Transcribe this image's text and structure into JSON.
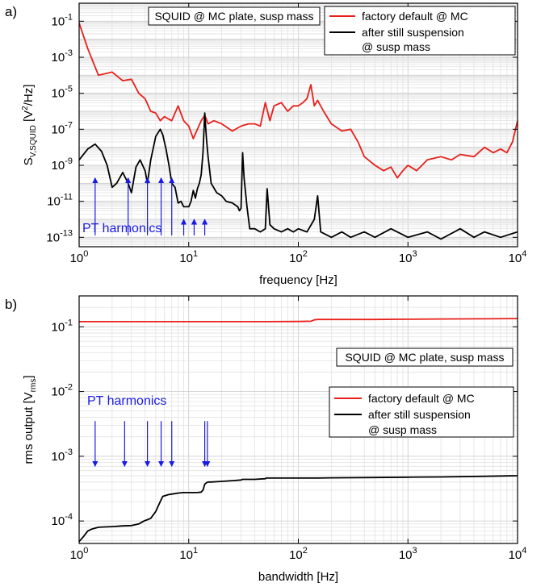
{
  "chart_data": [
    {
      "panel_label": "a)",
      "type": "line",
      "xscale": "log",
      "yscale": "log",
      "xlim": [
        1,
        10000
      ],
      "ylim": [
        3e-14,
        1
      ],
      "grid": true,
      "xlabel": "frequency [Hz]",
      "ylabel": "S",
      "ylabel_sub": "V,SQUID",
      "ylabel_unit_pre": " [V",
      "ylabel_unit_sup": "2",
      "ylabel_unit_post": "/Hz]",
      "x_ticks": [
        1,
        10,
        100,
        1000,
        10000
      ],
      "x_tick_labels": [
        {
          "base": "10",
          "exp": "0"
        },
        {
          "base": "10",
          "exp": "1"
        },
        {
          "base": "10",
          "exp": "2"
        },
        {
          "base": "10",
          "exp": "3"
        },
        {
          "base": "10",
          "exp": "4"
        }
      ],
      "y_ticks": [
        0.1,
        0.001,
        1e-05,
        1e-07,
        1e-09,
        1e-11,
        1e-13
      ],
      "y_tick_labels": [
        {
          "base": "10",
          "exp": "-1"
        },
        {
          "base": "10",
          "exp": "-3"
        },
        {
          "base": "10",
          "exp": "-5"
        },
        {
          "base": "10",
          "exp": "-7"
        },
        {
          "base": "10",
          "exp": "-9"
        },
        {
          "base": "10",
          "exp": "-11"
        },
        {
          "base": "10",
          "exp": "-13"
        }
      ],
      "annotation_box": "SQUID @ MC plate, susp mass",
      "annotation_harmonics": "PT harmonics",
      "harmonic_arrows_x": [
        1.4,
        2.8,
        4.2,
        5.6,
        7.0,
        9.0,
        11.2,
        14.0
      ],
      "harmonic_arrow_tops": [
        2e-10,
        2e-10,
        2e-10,
        2e-10,
        2e-10,
        1e-12,
        1e-12,
        1e-12
      ],
      "legend": {
        "position": "top-right",
        "lines": [
          {
            "series": 0,
            "text": "factory default @ MC"
          },
          {
            "series": 1,
            "text": "after still suspension"
          },
          {
            "series": null,
            "text": "@ susp mass"
          }
        ]
      },
      "series": [
        {
          "name": "factory default @ MC",
          "color": "#e8201a",
          "x": [
            1,
            1.2,
            1.5,
            2,
            2.5,
            3,
            3.5,
            4,
            4.5,
            5,
            5.5,
            6,
            7,
            8,
            9,
            10,
            11,
            12,
            13,
            14,
            15,
            17,
            20,
            25,
            30,
            35,
            40,
            45,
            50,
            55,
            60,
            70,
            80,
            90,
            100,
            110,
            120,
            130,
            140,
            150,
            170,
            200,
            250,
            300,
            350,
            400,
            500,
            600,
            700,
            800,
            900,
            1000,
            1200,
            1500,
            2000,
            2500,
            3000,
            4000,
            5000,
            6000,
            7000,
            8000,
            9000,
            10000
          ],
          "y": [
            0.08,
            0.003,
            0.0001,
            0.00015,
            5e-05,
            6e-05,
            1e-05,
            5e-06,
            1e-06,
            8e-07,
            3e-07,
            5e-07,
            3e-07,
            2e-06,
            3e-07,
            1.5e-07,
            3e-08,
            1e-07,
            3e-07,
            6e-07,
            2e-07,
            3e-07,
            2e-07,
            8e-08,
            1.5e-07,
            2e-07,
            2e-07,
            1.5e-07,
            3e-06,
            3e-07,
            2e-06,
            3e-06,
            1e-06,
            2e-06,
            2e-06,
            3e-06,
            5e-06,
            3e-05,
            2e-06,
            4e-06,
            1e-06,
            2e-07,
            8e-08,
            1e-07,
            2e-08,
            3e-09,
            1e-09,
            5e-10,
            8e-10,
            2e-10,
            5e-10,
            1e-09,
            5e-10,
            2e-09,
            3e-09,
            2e-09,
            4e-09,
            3e-09,
            1e-08,
            5e-09,
            8e-09,
            5e-09,
            2e-08,
            3e-07
          ]
        },
        {
          "name": "after still suspension",
          "color": "#000000",
          "x": [
            1,
            1.2,
            1.4,
            1.6,
            1.8,
            2,
            2.2,
            2.5,
            2.8,
            3,
            3.3,
            3.6,
            4,
            4.2,
            4.5,
            5,
            5.5,
            5.8,
            6.2,
            6.6,
            7,
            7.5,
            8,
            8.5,
            9,
            10,
            10.5,
            11,
            11.5,
            12,
            12.5,
            13,
            13.5,
            14,
            14.5,
            15,
            16,
            18,
            20,
            22,
            25,
            28,
            29,
            30,
            31,
            32,
            34,
            36,
            40,
            45,
            50,
            52,
            55,
            60,
            70,
            80,
            90,
            100,
            120,
            140,
            150,
            160,
            200,
            250,
            300,
            400,
            500,
            700,
            1000,
            1500,
            2000,
            3000,
            4000,
            5000,
            7000,
            10000
          ],
          "y": [
            2e-09,
            8e-09,
            1.5e-08,
            6e-09,
            1e-09,
            6e-11,
            1e-10,
            4e-10,
            1e-10,
            3e-11,
            8e-10,
            2e-09,
            5e-10,
            1e-10,
            2e-09,
            4e-08,
            1e-07,
            5e-08,
            8e-09,
            1e-09,
            1e-10,
            6e-11,
            8e-12,
            1e-11,
            5e-12,
            5e-12,
            1e-11,
            4e-11,
            1.5e-11,
            5e-11,
            1e-10,
            3e-10,
            5e-09,
            8e-07,
            3e-08,
            3e-09,
            1e-10,
            3e-11,
            2e-11,
            1e-11,
            8e-12,
            5e-12,
            3e-12,
            4e-12,
            5e-09,
            2e-10,
            5e-12,
            3e-13,
            3e-13,
            2e-13,
            3e-13,
            5e-11,
            5e-13,
            3e-13,
            2e-13,
            3e-13,
            2e-13,
            3e-13,
            2e-13,
            1e-12,
            2e-11,
            2e-13,
            1e-13,
            2e-13,
            1e-13,
            2e-13,
            1e-13,
            3e-13,
            1e-13,
            2e-13,
            8e-14,
            3e-13,
            1e-13,
            2e-13,
            1e-13,
            2e-13
          ]
        }
      ]
    },
    {
      "panel_label": "b)",
      "type": "line",
      "xscale": "log",
      "yscale": "log",
      "xlim": [
        1,
        10000
      ],
      "ylim": [
        4.5e-05,
        0.3
      ],
      "grid": true,
      "xlabel": "bandwidth [Hz]",
      "ylabel": "rms output [V",
      "ylabel_sub": "rms",
      "ylabel_post": "]",
      "x_ticks": [
        1,
        10,
        100,
        1000,
        10000
      ],
      "x_tick_labels": [
        {
          "base": "10",
          "exp": "0"
        },
        {
          "base": "10",
          "exp": "1"
        },
        {
          "base": "10",
          "exp": "2"
        },
        {
          "base": "10",
          "exp": "3"
        },
        {
          "base": "10",
          "exp": "4"
        }
      ],
      "y_ticks": [
        0.1,
        0.01,
        0.001,
        0.0001
      ],
      "y_tick_labels": [
        {
          "base": "10",
          "exp": "-1"
        },
        {
          "base": "10",
          "exp": "-2"
        },
        {
          "base": "10",
          "exp": "-3"
        },
        {
          "base": "10",
          "exp": "-4"
        }
      ],
      "annotation_box": "SQUID @ MC plate, susp mass",
      "annotation_harmonics": "PT harmonics",
      "harmonic_arrows_x": [
        1.4,
        2.6,
        4.2,
        5.6,
        7.0,
        14.0,
        14.8
      ],
      "harmonic_arrow_top": 0.0035,
      "harmonic_arrow_bottom": 0.0007,
      "legend": {
        "position": "center-right",
        "lines": [
          {
            "series": 0,
            "text": "factory default @ MC"
          },
          {
            "series": 1,
            "text": "after still suspension"
          },
          {
            "series": null,
            "text": "@ susp mass"
          }
        ]
      },
      "series": [
        {
          "name": "factory default @ MC",
          "color": "#e8201a",
          "x": [
            1,
            2,
            5,
            10,
            20,
            50,
            100,
            130,
            140,
            150,
            200,
            500,
            1000,
            2000,
            5000,
            10000
          ],
          "y": [
            0.12,
            0.12,
            0.12,
            0.12,
            0.12,
            0.12,
            0.121,
            0.122,
            0.128,
            0.13,
            0.13,
            0.13,
            0.131,
            0.132,
            0.133,
            0.134
          ]
        },
        {
          "name": "after still suspension",
          "color": "#000000",
          "x": [
            1,
            1.1,
            1.2,
            1.3,
            1.5,
            2,
            2.5,
            3,
            3.5,
            3.9,
            4.2,
            4.5,
            5,
            5.5,
            5.8,
            6.5,
            7,
            8,
            9,
            10,
            12,
            13,
            13.5,
            14,
            14.5,
            15,
            16,
            20,
            25,
            30,
            31,
            40,
            50,
            51,
            100,
            150,
            200,
            500,
            1000,
            2000,
            5000,
            10000
          ],
          "y": [
            4.8e-05,
            5.8e-05,
            7e-05,
            7.5e-05,
            8e-05,
            8.2e-05,
            8.4e-05,
            8.5e-05,
            9e-05,
            0.0001,
            0.000105,
            0.00011,
            0.00014,
            0.0002,
            0.00024,
            0.000255,
            0.00026,
            0.00027,
            0.000275,
            0.000275,
            0.000275,
            0.00028,
            0.0003,
            0.00037,
            0.00039,
            0.0004,
            0.0004,
            0.00041,
            0.00042,
            0.00043,
            0.00044,
            0.00044,
            0.00045,
            0.00046,
            0.00046,
            0.00046,
            0.000465,
            0.00047,
            0.000475,
            0.00048,
            0.00049,
            0.0005
          ]
        }
      ]
    }
  ]
}
